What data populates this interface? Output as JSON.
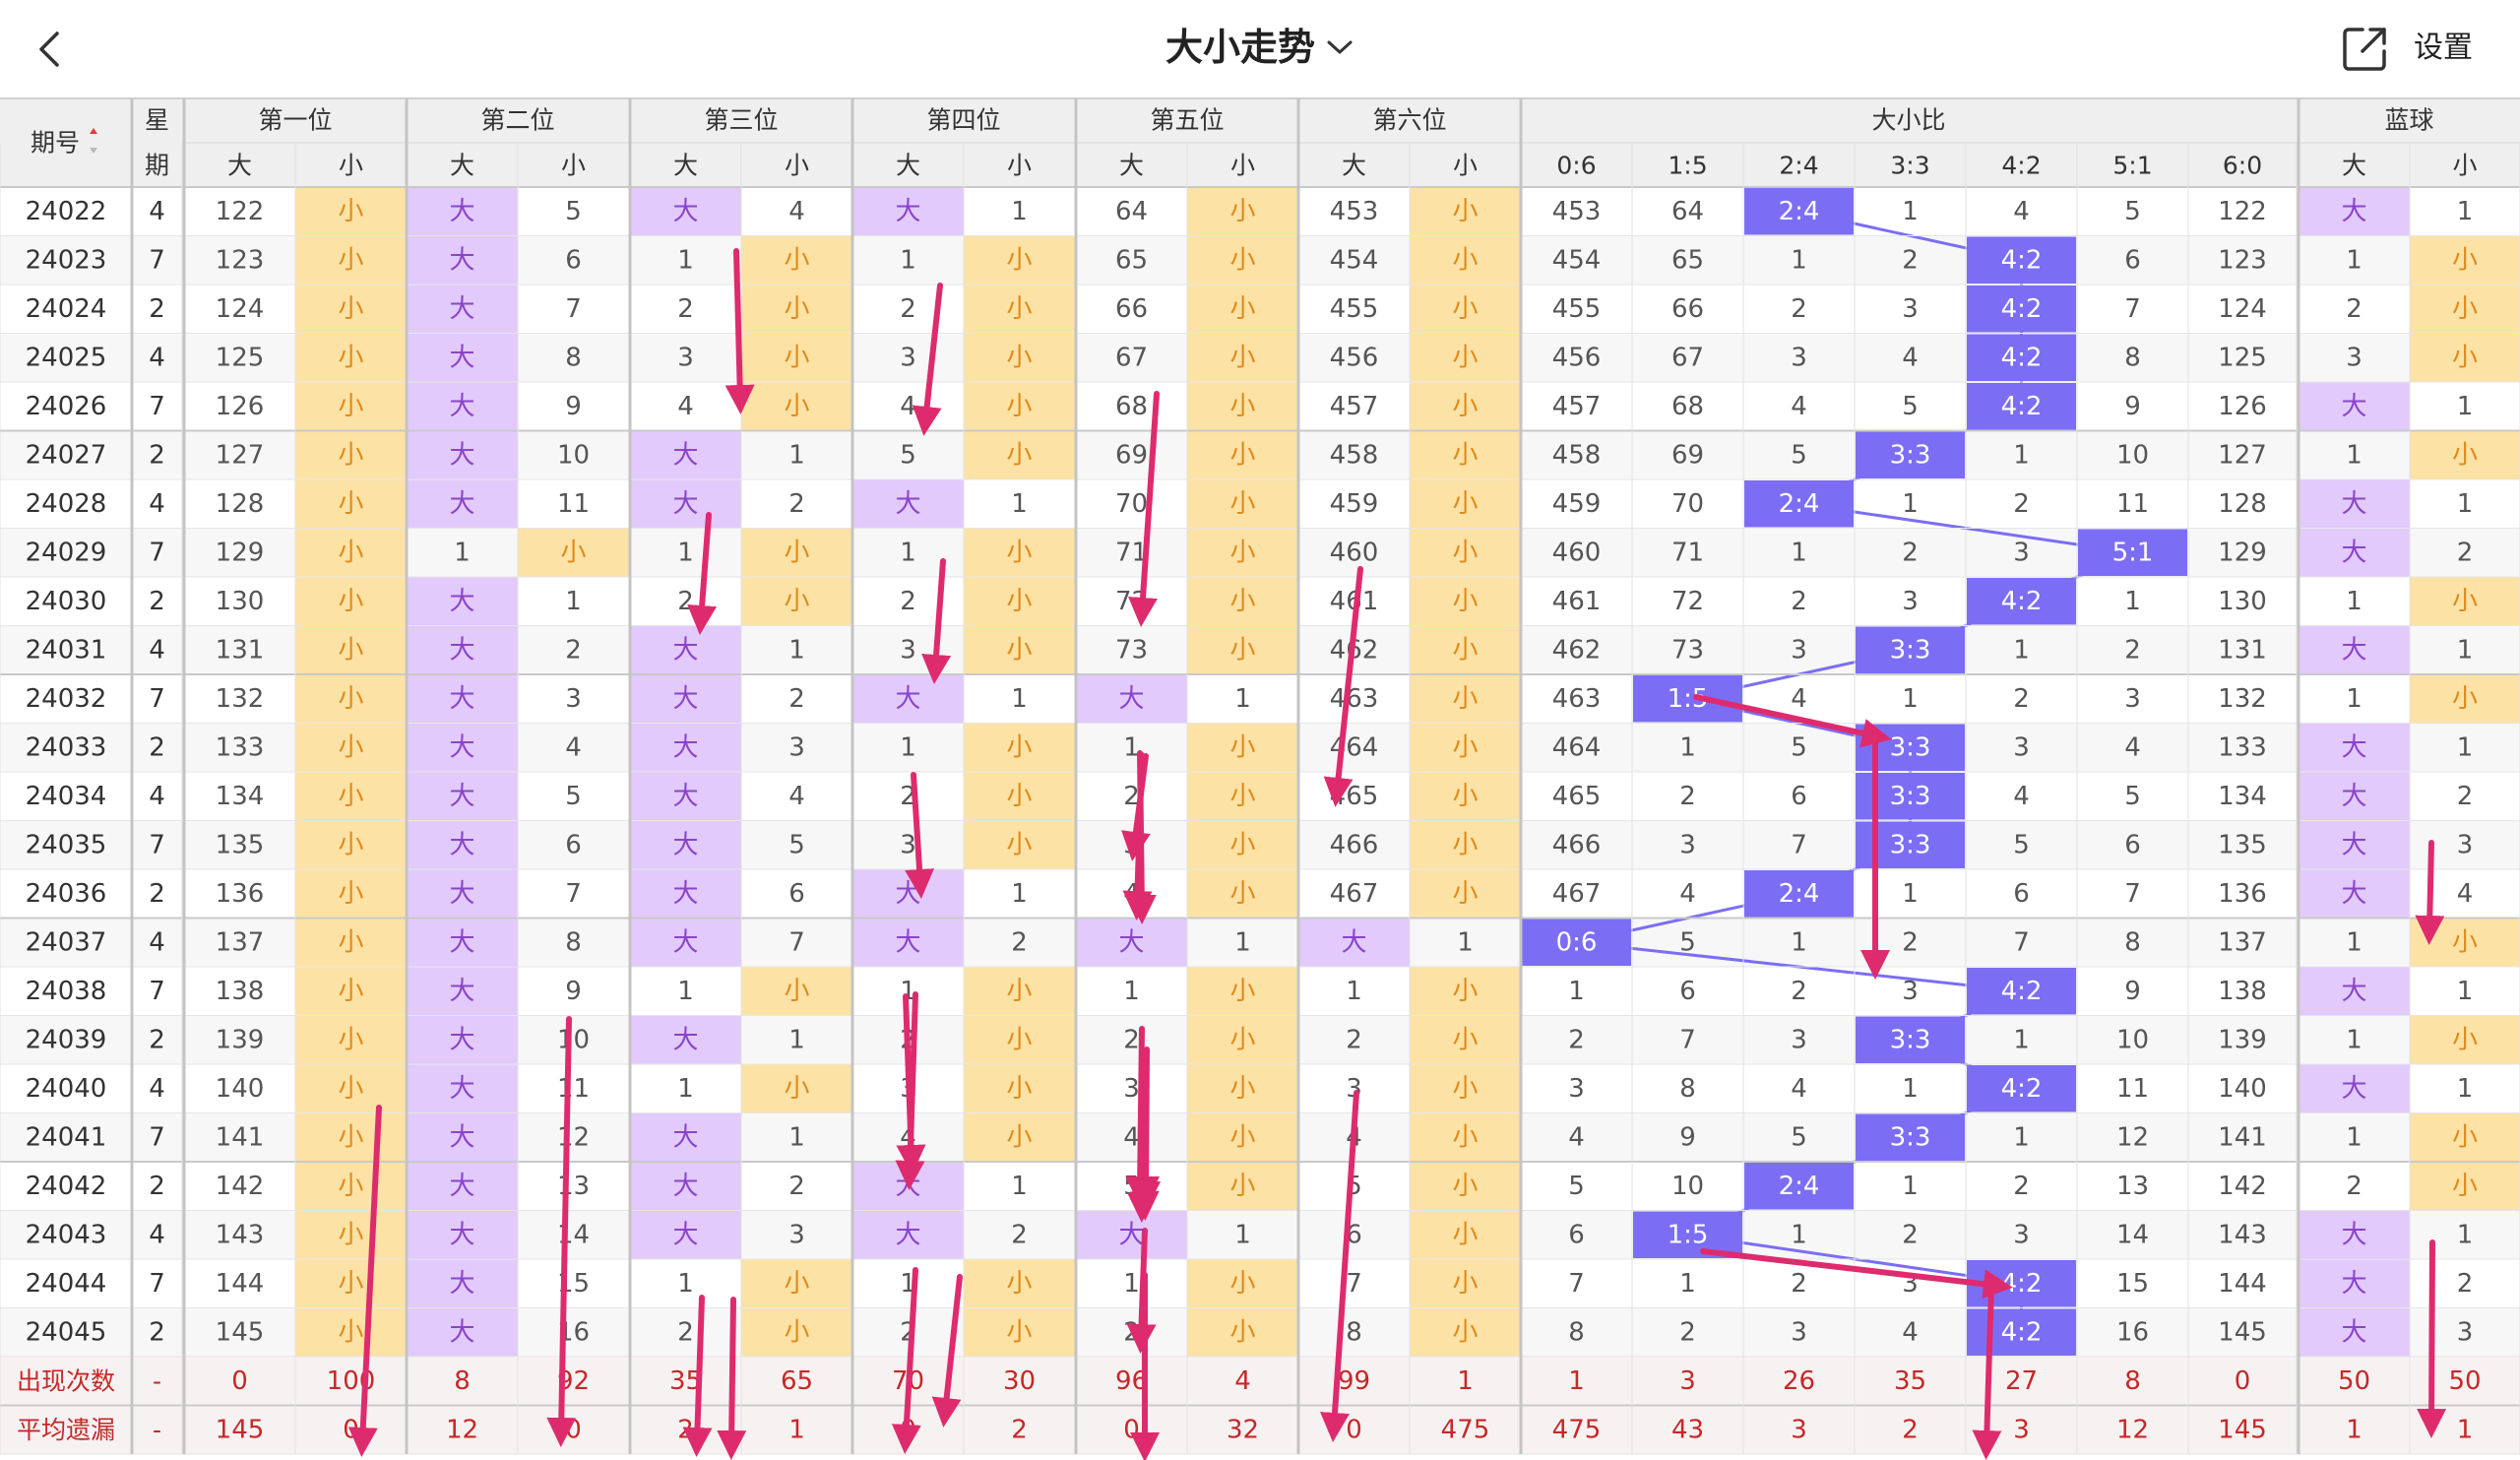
{
  "header": {
    "title": "大小走势",
    "settings_label": "设置"
  },
  "colors": {
    "purple_cell": "#e2cafc",
    "yellow_cell": "#fde2a5",
    "ratio_hit": "#7b6ef4",
    "arrow": "#de2b6e",
    "big_text": "#8a44c8",
    "small_text": "#e08a1a",
    "footer_text": "#c62828"
  },
  "table": {
    "sort_label": "期号",
    "week_label": [
      "星",
      "期"
    ],
    "groups": [
      "第一位",
      "第二位",
      "第三位",
      "第四位",
      "第五位",
      "第六位",
      "大小比",
      "蓝球"
    ],
    "big_label": "大",
    "small_label": "小",
    "ratio_labels": [
      "0:6",
      "1:5",
      "2:4",
      "3:3",
      "4:2",
      "5:1",
      "6:0"
    ],
    "rows": [
      {
        "issue": "24022",
        "week": "4",
        "pos": [
          [
            0,
            122
          ],
          [
            1,
            5
          ],
          [
            1,
            4
          ],
          [
            1,
            1
          ],
          [
            0,
            64
          ],
          [
            0,
            453
          ]
        ],
        "ratio": [
          453,
          64,
          "H",
          1,
          4,
          5,
          122
        ],
        "blue": [
          1,
          1
        ]
      },
      {
        "issue": "24023",
        "week": "7",
        "pos": [
          [
            0,
            123
          ],
          [
            1,
            6
          ],
          [
            0,
            1
          ],
          [
            0,
            1
          ],
          [
            0,
            65
          ],
          [
            0,
            454
          ]
        ],
        "ratio": [
          454,
          65,
          1,
          2,
          "H",
          6,
          123
        ],
        "blue": [
          0,
          1
        ]
      },
      {
        "issue": "24024",
        "week": "2",
        "pos": [
          [
            0,
            124
          ],
          [
            1,
            7
          ],
          [
            0,
            2
          ],
          [
            0,
            2
          ],
          [
            0,
            66
          ],
          [
            0,
            455
          ]
        ],
        "ratio": [
          455,
          66,
          2,
          3,
          "H",
          7,
          124
        ],
        "blue": [
          0,
          2
        ]
      },
      {
        "issue": "24025",
        "week": "4",
        "pos": [
          [
            0,
            125
          ],
          [
            1,
            8
          ],
          [
            0,
            3
          ],
          [
            0,
            3
          ],
          [
            0,
            67
          ],
          [
            0,
            456
          ]
        ],
        "ratio": [
          456,
          67,
          3,
          4,
          "H",
          8,
          125
        ],
        "blue": [
          0,
          3
        ]
      },
      {
        "issue": "24026",
        "week": "7",
        "pos": [
          [
            0,
            126
          ],
          [
            1,
            9
          ],
          [
            0,
            4
          ],
          [
            0,
            4
          ],
          [
            0,
            68
          ],
          [
            0,
            457
          ]
        ],
        "ratio": [
          457,
          68,
          4,
          5,
          "H",
          9,
          126
        ],
        "blue": [
          1,
          1
        ]
      },
      {
        "issue": "24027",
        "week": "2",
        "pos": [
          [
            0,
            127
          ],
          [
            1,
            10
          ],
          [
            1,
            1
          ],
          [
            0,
            5
          ],
          [
            0,
            69
          ],
          [
            0,
            458
          ]
        ],
        "ratio": [
          458,
          69,
          5,
          "H",
          1,
          10,
          127
        ],
        "blue": [
          0,
          1
        ]
      },
      {
        "issue": "24028",
        "week": "4",
        "pos": [
          [
            0,
            128
          ],
          [
            1,
            11
          ],
          [
            1,
            2
          ],
          [
            1,
            1
          ],
          [
            0,
            70
          ],
          [
            0,
            459
          ]
        ],
        "ratio": [
          459,
          70,
          "H",
          1,
          2,
          11,
          128
        ],
        "blue": [
          1,
          1
        ]
      },
      {
        "issue": "24029",
        "week": "7",
        "pos": [
          [
            0,
            129
          ],
          [
            0,
            1
          ],
          [
            0,
            1
          ],
          [
            0,
            1
          ],
          [
            0,
            71
          ],
          [
            0,
            460
          ]
        ],
        "ratio": [
          460,
          71,
          1,
          2,
          3,
          "H",
          129
        ],
        "blue": [
          1,
          2
        ]
      },
      {
        "issue": "24030",
        "week": "2",
        "pos": [
          [
            0,
            130
          ],
          [
            1,
            1
          ],
          [
            0,
            2
          ],
          [
            0,
            2
          ],
          [
            0,
            72
          ],
          [
            0,
            461
          ]
        ],
        "ratio": [
          461,
          72,
          2,
          3,
          "H",
          1,
          130
        ],
        "blue": [
          0,
          1
        ]
      },
      {
        "issue": "24031",
        "week": "4",
        "pos": [
          [
            0,
            131
          ],
          [
            1,
            2
          ],
          [
            1,
            1
          ],
          [
            0,
            3
          ],
          [
            0,
            73
          ],
          [
            0,
            462
          ]
        ],
        "ratio": [
          462,
          73,
          3,
          "H",
          1,
          2,
          131
        ],
        "blue": [
          1,
          1
        ]
      },
      {
        "issue": "24032",
        "week": "7",
        "pos": [
          [
            0,
            132
          ],
          [
            1,
            3
          ],
          [
            1,
            2
          ],
          [
            1,
            1
          ],
          [
            1,
            1
          ],
          [
            0,
            463
          ]
        ],
        "ratio": [
          463,
          "H",
          4,
          1,
          2,
          3,
          132
        ],
        "blue": [
          0,
          1
        ]
      },
      {
        "issue": "24033",
        "week": "2",
        "pos": [
          [
            0,
            133
          ],
          [
            1,
            4
          ],
          [
            1,
            3
          ],
          [
            0,
            1
          ],
          [
            0,
            1
          ],
          [
            0,
            464
          ]
        ],
        "ratio": [
          464,
          1,
          5,
          "H",
          3,
          4,
          133
        ],
        "blue": [
          1,
          1
        ]
      },
      {
        "issue": "24034",
        "week": "4",
        "pos": [
          [
            0,
            134
          ],
          [
            1,
            5
          ],
          [
            1,
            4
          ],
          [
            0,
            2
          ],
          [
            0,
            2
          ],
          [
            0,
            465
          ]
        ],
        "ratio": [
          465,
          2,
          6,
          "H",
          4,
          5,
          134
        ],
        "blue": [
          1,
          2
        ]
      },
      {
        "issue": "24035",
        "week": "7",
        "pos": [
          [
            0,
            135
          ],
          [
            1,
            6
          ],
          [
            1,
            5
          ],
          [
            0,
            3
          ],
          [
            0,
            3
          ],
          [
            0,
            466
          ]
        ],
        "ratio": [
          466,
          3,
          7,
          "H",
          5,
          6,
          135
        ],
        "blue": [
          1,
          3
        ]
      },
      {
        "issue": "24036",
        "week": "2",
        "pos": [
          [
            0,
            136
          ],
          [
            1,
            7
          ],
          [
            1,
            6
          ],
          [
            1,
            1
          ],
          [
            0,
            4
          ],
          [
            0,
            467
          ]
        ],
        "ratio": [
          467,
          4,
          "H",
          1,
          6,
          7,
          136
        ],
        "blue": [
          1,
          4
        ]
      },
      {
        "issue": "24037",
        "week": "4",
        "pos": [
          [
            0,
            137
          ],
          [
            1,
            8
          ],
          [
            1,
            7
          ],
          [
            1,
            2
          ],
          [
            1,
            1
          ],
          [
            1,
            1
          ]
        ],
        "ratio": [
          "H",
          5,
          1,
          2,
          7,
          8,
          137
        ],
        "blue": [
          0,
          1
        ]
      },
      {
        "issue": "24038",
        "week": "7",
        "pos": [
          [
            0,
            138
          ],
          [
            1,
            9
          ],
          [
            0,
            1
          ],
          [
            0,
            1
          ],
          [
            0,
            1
          ],
          [
            0,
            1
          ]
        ],
        "ratio": [
          1,
          6,
          2,
          3,
          "H",
          9,
          138
        ],
        "blue": [
          1,
          1
        ]
      },
      {
        "issue": "24039",
        "week": "2",
        "pos": [
          [
            0,
            139
          ],
          [
            1,
            10
          ],
          [
            1,
            1
          ],
          [
            0,
            2
          ],
          [
            0,
            2
          ],
          [
            0,
            2
          ]
        ],
        "ratio": [
          2,
          7,
          3,
          "H",
          1,
          10,
          139
        ],
        "blue": [
          0,
          1
        ]
      },
      {
        "issue": "24040",
        "week": "4",
        "pos": [
          [
            0,
            140
          ],
          [
            1,
            11
          ],
          [
            0,
            1
          ],
          [
            0,
            3
          ],
          [
            0,
            3
          ],
          [
            0,
            3
          ]
        ],
        "ratio": [
          3,
          8,
          4,
          1,
          "H",
          11,
          140
        ],
        "blue": [
          1,
          1
        ]
      },
      {
        "issue": "24041",
        "week": "7",
        "pos": [
          [
            0,
            141
          ],
          [
            1,
            12
          ],
          [
            1,
            1
          ],
          [
            0,
            4
          ],
          [
            0,
            4
          ],
          [
            0,
            4
          ]
        ],
        "ratio": [
          4,
          9,
          5,
          "H",
          1,
          12,
          141
        ],
        "blue": [
          0,
          1
        ]
      },
      {
        "issue": "24042",
        "week": "2",
        "pos": [
          [
            0,
            142
          ],
          [
            1,
            13
          ],
          [
            1,
            2
          ],
          [
            1,
            1
          ],
          [
            0,
            5
          ],
          [
            0,
            5
          ]
        ],
        "ratio": [
          5,
          10,
          "H",
          1,
          2,
          13,
          142
        ],
        "blue": [
          0,
          2
        ]
      },
      {
        "issue": "24043",
        "week": "4",
        "pos": [
          [
            0,
            143
          ],
          [
            1,
            14
          ],
          [
            1,
            3
          ],
          [
            1,
            2
          ],
          [
            1,
            1
          ],
          [
            0,
            6
          ]
        ],
        "ratio": [
          6,
          "H",
          1,
          2,
          3,
          14,
          143
        ],
        "blue": [
          1,
          1
        ]
      },
      {
        "issue": "24044",
        "week": "7",
        "pos": [
          [
            0,
            144
          ],
          [
            1,
            15
          ],
          [
            0,
            1
          ],
          [
            0,
            1
          ],
          [
            0,
            1
          ],
          [
            0,
            7
          ]
        ],
        "ratio": [
          7,
          1,
          2,
          3,
          "H",
          15,
          144
        ],
        "blue": [
          1,
          2
        ]
      },
      {
        "issue": "24045",
        "week": "2",
        "pos": [
          [
            0,
            145
          ],
          [
            1,
            16
          ],
          [
            0,
            2
          ],
          [
            0,
            2
          ],
          [
            0,
            2
          ],
          [
            0,
            8
          ]
        ],
        "ratio": [
          8,
          2,
          3,
          4,
          "H",
          16,
          145
        ],
        "blue": [
          1,
          3
        ]
      }
    ],
    "footer": [
      {
        "label": "出现次数",
        "week": "-",
        "values": [
          "0",
          "100",
          "8",
          "92",
          "35",
          "65",
          "70",
          "30",
          "96",
          "4",
          "99",
          "1",
          "1",
          "3",
          "26",
          "35",
          "27",
          "8",
          "0",
          "50",
          "50"
        ]
      },
      {
        "label": "平均遗漏",
        "week": "-",
        "values": [
          "145",
          "0",
          "12",
          "0",
          "2",
          "1",
          "0",
          "2",
          "0",
          "32",
          "0",
          "475",
          "475",
          "43",
          "3",
          "2",
          "3",
          "12",
          "145",
          "1",
          "1"
        ]
      }
    ]
  }
}
